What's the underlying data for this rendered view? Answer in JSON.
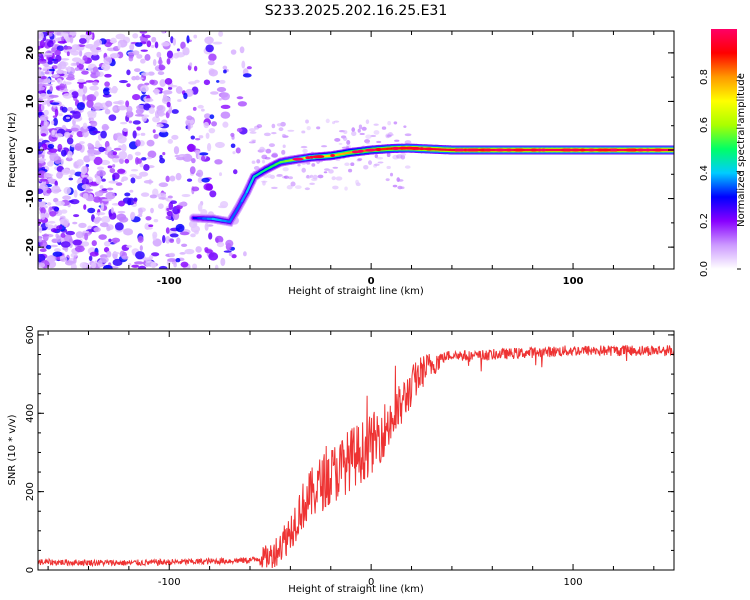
{
  "title": "S233.2025.202.16.25.E31",
  "chart_data": [
    {
      "type": "heatmap",
      "title": "",
      "xlabel": "Height of straight line (km)",
      "ylabel": "Frequency (Hz)",
      "xlim": [
        -165,
        150
      ],
      "ylim": [
        -24.5,
        24.5
      ],
      "xticks": [
        -100,
        0,
        100
      ],
      "xtick_labels": [
        "-100",
        "0",
        "100"
      ],
      "yticks": [
        -20,
        -10,
        0,
        10,
        20
      ],
      "ytick_labels": [
        "-20",
        "-10",
        "0",
        "10",
        "20"
      ],
      "colorbar": {
        "label": "Normalized spectral amplitude",
        "range": [
          0,
          1
        ],
        "ticks": [
          0.0,
          0.2,
          0.4,
          0.6,
          0.8
        ],
        "tick_labels": [
          "0.0",
          "0.2",
          "0.4",
          "0.6",
          "0.8"
        ],
        "colors": [
          "#ffffff",
          "#cc99ff",
          "#8800ff",
          "#0000ff",
          "#00ccff",
          "#00ff66",
          "#aaff00",
          "#ffff00",
          "#ff9900",
          "#ff0000",
          "#ff0066"
        ]
      },
      "ridge": {
        "x": [
          -88,
          -78,
          -70,
          -66,
          -62,
          -58,
          -52,
          -45,
          -38,
          -30,
          -20,
          -10,
          0,
          10,
          18,
          40,
          80,
          120,
          150
        ],
        "y": [
          -14,
          -14.2,
          -14.8,
          -12,
          -9,
          -5.5,
          -4,
          -2.5,
          -2,
          -1.5,
          -1.2,
          -0.5,
          0,
          0.3,
          0.4,
          0,
          0,
          0,
          0
        ],
        "amplitude": [
          0.3,
          0.4,
          0.35,
          0.35,
          0.4,
          0.45,
          0.5,
          0.55,
          0.6,
          0.7,
          0.75,
          0.8,
          0.85,
          0.9,
          0.95,
          0.95,
          0.97,
          0.98,
          0.99
        ]
      },
      "noise_region": {
        "x_range": [
          -165,
          -60
        ],
        "amplitude_range": [
          0.05,
          0.3
        ]
      }
    },
    {
      "type": "line",
      "title": "",
      "xlabel": "Height of straight line (km)",
      "ylabel": "SNR (10 * v/v)",
      "xlim": [
        -165,
        150
      ],
      "ylim": [
        0,
        610
      ],
      "xticks": [
        -100,
        0,
        100
      ],
      "xtick_labels": [
        "-100",
        "0",
        "100"
      ],
      "yticks": [
        0,
        200,
        400,
        600
      ],
      "ytick_labels": [
        "0",
        "200",
        "400",
        "600"
      ],
      "series": [
        {
          "color": "#ee3333",
          "x": [
            -165,
            -120,
            -80,
            -60,
            -50,
            -45,
            -40,
            -35,
            -30,
            -25,
            -20,
            -15,
            -10,
            -5,
            0,
            5,
            10,
            15,
            20,
            25,
            30,
            35,
            40,
            50,
            60,
            80,
            100,
            120,
            140,
            150
          ],
          "y": [
            20,
            18,
            22,
            25,
            35,
            60,
            100,
            155,
            190,
            220,
            240,
            260,
            285,
            300,
            320,
            350,
            380,
            420,
            470,
            505,
            525,
            540,
            550,
            545,
            550,
            555,
            560,
            560,
            560,
            560
          ]
        }
      ]
    }
  ]
}
